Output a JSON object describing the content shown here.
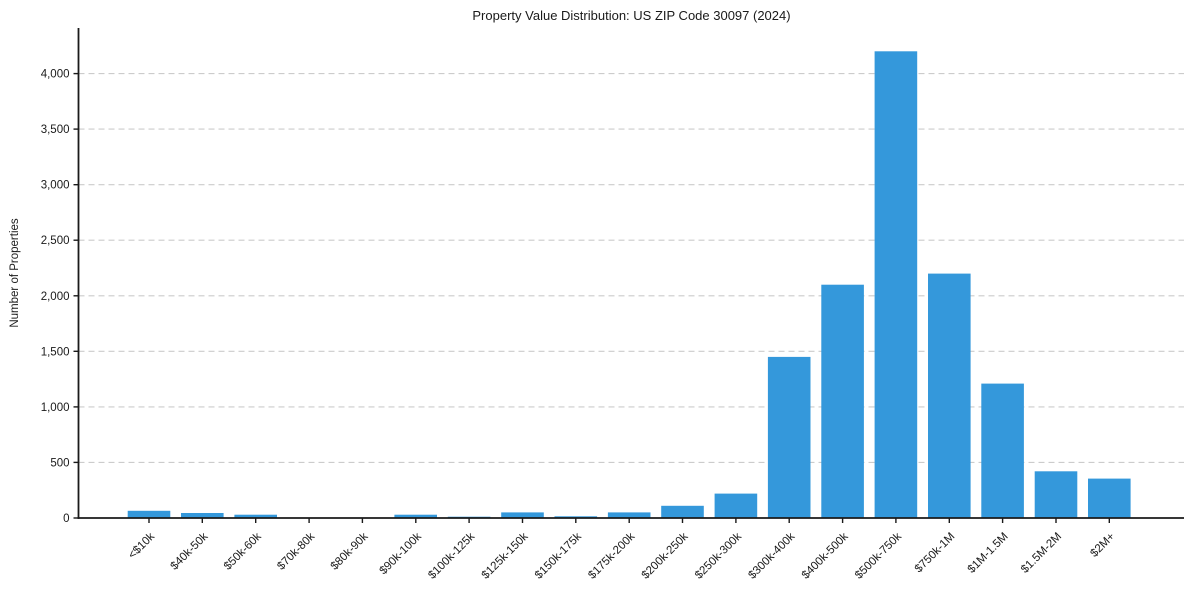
{
  "chart_data": {
    "type": "bar",
    "title": "Property Value Distribution: US ZIP Code 30097 (2024)",
    "xlabel": "",
    "ylabel": "Number of Properties",
    "categories": [
      "<$10k",
      "$40k-50k",
      "$50k-60k",
      "$70k-80k",
      "$80k-90k",
      "$90k-100k",
      "$100k-125k",
      "$125k-150k",
      "$150k-175k",
      "$175k-200k",
      "$200k-250k",
      "$250k-300k",
      "$300k-400k",
      "$400k-500k",
      "$500k-750k",
      "$750k-1M",
      "$1M-1.5M",
      "$1.5M-2M",
      "$2M+"
    ],
    "values": [
      65,
      45,
      30,
      2,
      3,
      30,
      12,
      50,
      15,
      50,
      110,
      220,
      1450,
      2100,
      4200,
      2200,
      1210,
      420,
      355
    ],
    "ylim": [
      0,
      4410
    ],
    "yticks": [
      0,
      500,
      1000,
      1500,
      2000,
      2500,
      3000,
      3500,
      4000
    ],
    "ytick_labels": [
      "0",
      "500",
      "1,000",
      "1,500",
      "2,000",
      "2,500",
      "3,000",
      "3,500",
      "4,000"
    ],
    "x_tick_label_rotation_deg": 45,
    "grid": "horizontal-dashed",
    "legend": "none",
    "bar_color": "#3498db",
    "axis_color": "#1a1a1a",
    "grid_color": "#cccccc",
    "background": "#ffffff"
  }
}
